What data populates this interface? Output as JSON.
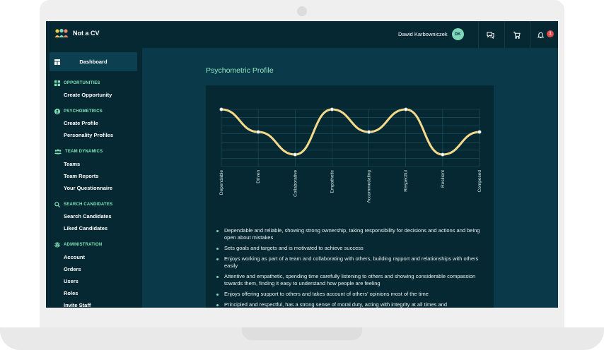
{
  "app": {
    "title": "Not a CV"
  },
  "user": {
    "name": "Dawid Karbowniczek",
    "initials": "DK"
  },
  "notifications": {
    "count": "1"
  },
  "sidebar": {
    "dashboard": "Dashboard",
    "sections": [
      {
        "title": "OPPORTUNITIES",
        "icon": "grid-icon",
        "items": [
          "Create Opportunity"
        ]
      },
      {
        "title": "PSYCHOMETRICS",
        "icon": "user-circle-icon",
        "items": [
          "Create Profile",
          "Personality Profiles"
        ]
      },
      {
        "title": "TEAM DYNAMICS",
        "icon": "team-icon",
        "items": [
          "Teams",
          "Team Reports",
          "Your Questionnaire"
        ]
      },
      {
        "title": "SEARCH CANDIDATES",
        "icon": "search-icon",
        "items": [
          "Search Candidates",
          "Liked Candidates"
        ]
      },
      {
        "title": "ADMINISTRATION",
        "icon": "gear-icon",
        "items": [
          "Account",
          "Orders",
          "Users",
          "Roles",
          "Invite Staff"
        ]
      }
    ]
  },
  "main": {
    "title": "Psychometric Profile",
    "bullets": [
      "Dependable and reliable, showing strong ownership, taking responsibility for decisions and actions and being open about mistakes",
      "Sets goals and targets and is motivated to achieve success",
      "Enjoys working as part of a team and collaborating with others, building rapport and relationships with others easily",
      "Attentive and empathetic, spending time carefully listening to others and showing considerable compassion towards them, finding it easy to understand how people are feeling",
      "Enjoys offering support to others and takes account of others' opinions most of the time",
      "Principled and respectful, has a strong sense of moral duty, acting with integrity at all times and"
    ]
  },
  "chart_data": {
    "type": "line",
    "categories": [
      "Dependable",
      "Driven",
      "Collaborative",
      "Empathetic",
      "Accommodating",
      "Respectful",
      "Resilient",
      "Composed"
    ],
    "values": [
      5,
      4,
      3,
      5,
      4,
      5,
      3,
      4
    ],
    "ylim": [
      3,
      5
    ],
    "grid": true,
    "line_color": "#f5d98a"
  },
  "colors": {
    "accent": "#7fe6b8",
    "background": "#0a3a49",
    "panel": "#062833",
    "alert": "#e54b4b"
  }
}
